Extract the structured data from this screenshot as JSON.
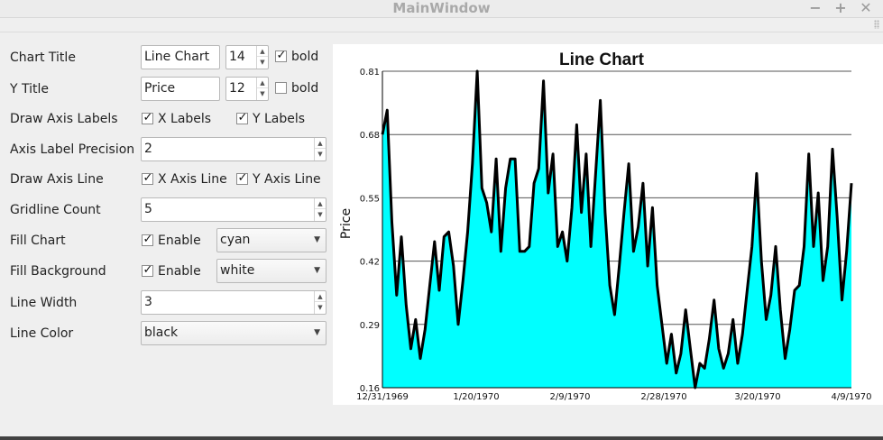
{
  "window": {
    "title": "MainWindow",
    "minimize_glyph": "−",
    "maximize_glyph": "+",
    "close_glyph": "✕"
  },
  "form": {
    "chart_title": {
      "label": "Chart Title",
      "value": "Line Chart",
      "size": "14",
      "bold_label": "bold",
      "bold_checked": true
    },
    "y_title": {
      "label": "Y Title",
      "value": "Price",
      "size": "12",
      "bold_label": "bold",
      "bold_checked": false
    },
    "draw_axis_labels": {
      "label": "Draw Axis Labels",
      "x_label": "X Labels",
      "x_checked": true,
      "y_label": "Y Labels",
      "y_checked": true
    },
    "axis_label_precision": {
      "label": "Axis Label Precision",
      "value": "2"
    },
    "draw_axis_line": {
      "label": "Draw Axis Line",
      "x_label": "X Axis Line",
      "x_checked": true,
      "y_label": "Y Axis Line",
      "y_checked": true
    },
    "gridline_count": {
      "label": "Gridline Count",
      "value": "5"
    },
    "fill_chart": {
      "label": "Fill Chart",
      "enable_label": "Enable",
      "checked": true,
      "color": "cyan"
    },
    "fill_background": {
      "label": "Fill Background",
      "enable_label": "Enable",
      "checked": true,
      "color": "white"
    },
    "line_width": {
      "label": "Line Width",
      "value": "3"
    },
    "line_color": {
      "label": "Line Color",
      "value": "black"
    }
  },
  "colors": {
    "fill": "#00ffff",
    "line": "#000000",
    "background": "#ffffff",
    "gridline": "#555555"
  },
  "chart_data": {
    "type": "area",
    "title": "Line Chart",
    "ylabel": "Price",
    "xlabel": "",
    "ylim": [
      0.16,
      0.81
    ],
    "y_ticks": [
      "0.16",
      "0.29",
      "0.42",
      "0.55",
      "0.68",
      "0.81"
    ],
    "x_ticks": [
      "12/31/1969",
      "1/20/1970",
      "2/9/1970",
      "2/28/1970",
      "3/20/1970",
      "4/9/1970"
    ],
    "grid": true,
    "series": [
      {
        "values": [
          0.68,
          0.73,
          0.5,
          0.35,
          0.47,
          0.33,
          0.24,
          0.3,
          0.22,
          0.28,
          0.37,
          0.46,
          0.36,
          0.47,
          0.48,
          0.41,
          0.29,
          0.38,
          0.48,
          0.62,
          0.81,
          0.57,
          0.54,
          0.48,
          0.63,
          0.44,
          0.57,
          0.63,
          0.63,
          0.44,
          0.44,
          0.45,
          0.58,
          0.61,
          0.79,
          0.56,
          0.64,
          0.45,
          0.48,
          0.42,
          0.53,
          0.7,
          0.52,
          0.64,
          0.45,
          0.6,
          0.75,
          0.52,
          0.37,
          0.31,
          0.41,
          0.52,
          0.62,
          0.44,
          0.49,
          0.58,
          0.41,
          0.53,
          0.37,
          0.29,
          0.21,
          0.27,
          0.19,
          0.23,
          0.32,
          0.24,
          0.16,
          0.21,
          0.2,
          0.26,
          0.34,
          0.24,
          0.2,
          0.23,
          0.3,
          0.21,
          0.27,
          0.36,
          0.45,
          0.6,
          0.42,
          0.3,
          0.35,
          0.45,
          0.32,
          0.22,
          0.28,
          0.36,
          0.37,
          0.45,
          0.64,
          0.45,
          0.56,
          0.38,
          0.45,
          0.65,
          0.51,
          0.34,
          0.44,
          0.58
        ]
      }
    ]
  }
}
